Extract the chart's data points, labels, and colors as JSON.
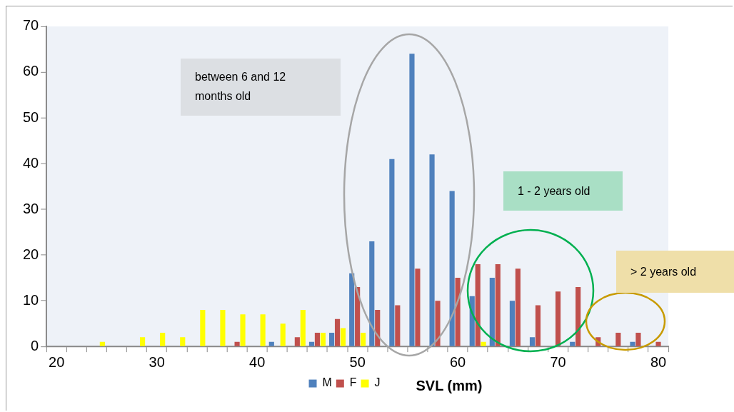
{
  "chart_data": {
    "type": "bar",
    "xlabel": "SVL (mm)",
    "categories": [
      "20",
      null,
      null,
      null,
      null,
      "30",
      null,
      null,
      null,
      null,
      "40",
      null,
      null,
      null,
      null,
      "50",
      null,
      null,
      null,
      null,
      "60",
      null,
      null,
      null,
      null,
      "70",
      null,
      null,
      null,
      null,
      "80"
    ],
    "series": [
      {
        "name": "M",
        "color": "#4f81bd",
        "values": [
          0,
          0,
          0,
          0,
          0,
          0,
          0,
          0,
          0,
          0,
          0,
          1,
          0,
          1,
          3,
          16,
          23,
          41,
          64,
          42,
          34,
          11,
          15,
          10,
          2,
          0,
          1,
          0,
          0,
          1,
          0
        ]
      },
      {
        "name": "F",
        "color": "#c0504d",
        "values": [
          0,
          0,
          0,
          0,
          0,
          0,
          0,
          0,
          0,
          1,
          0,
          0,
          2,
          3,
          6,
          13,
          8,
          9,
          17,
          10,
          15,
          18,
          18,
          17,
          9,
          12,
          13,
          2,
          3,
          3,
          1
        ]
      },
      {
        "name": "J",
        "color": "#ffff00",
        "values": [
          0,
          0,
          1,
          0,
          2,
          3,
          2,
          8,
          8,
          7,
          7,
          5,
          8,
          3,
          4,
          3,
          0,
          0,
          0,
          0,
          0,
          1,
          0,
          0,
          0,
          0,
          0,
          0,
          0,
          0,
          0
        ]
      }
    ],
    "ylim": [
      0,
      70
    ],
    "yticks": [
      0,
      10,
      20,
      30,
      40,
      50,
      60,
      70
    ],
    "grid": false,
    "legend": "bottom",
    "annotations": [
      "between 6 and 12 months old",
      "1 - 2 years old",
      "> 2 years old"
    ]
  }
}
